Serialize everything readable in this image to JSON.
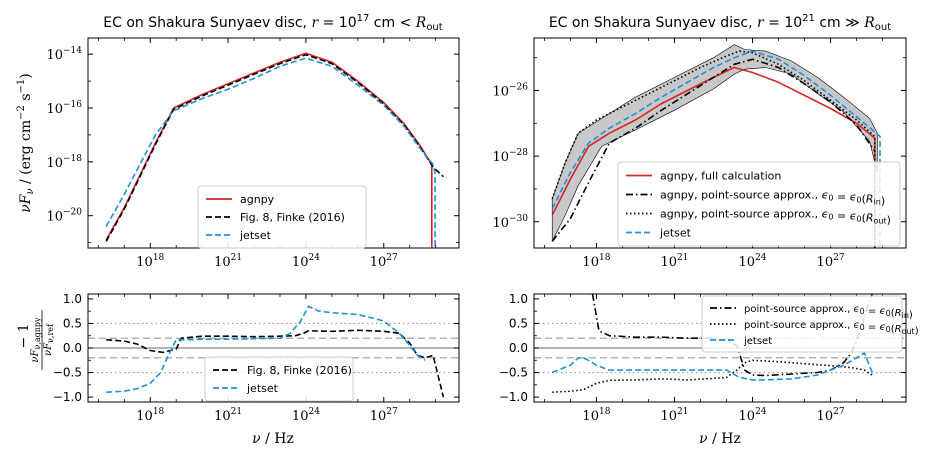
{
  "chart_data": [
    {
      "id": "top-left",
      "type": "line",
      "title": "EC on Shakura Sunyaev disc, r = 10^17 cm < R_out",
      "ylabel": "νF_ν / (erg cm^-2 s^-1)",
      "xlabel": "",
      "xscale": "log",
      "yscale": "log",
      "xlim_log10": [
        15.6,
        29.9
      ],
      "ylim_log10": [
        -21.2,
        -13.4
      ],
      "xticks": [
        {
          "pos": 18,
          "label": "10^18"
        },
        {
          "pos": 21,
          "label": "10^21"
        },
        {
          "pos": 24,
          "label": "10^24"
        },
        {
          "pos": 27,
          "label": "10^27"
        }
      ],
      "yticks": [
        {
          "pos": -14,
          "label": "10^-14"
        },
        {
          "pos": -16,
          "label": "10^-16"
        },
        {
          "pos": -18,
          "label": "10^-18"
        },
        {
          "pos": -20,
          "label": "10^-20"
        }
      ],
      "legend_position": "lower-center",
      "legend": [
        "agnpy",
        "Fig. 8, Finke (2016)",
        "jetset"
      ],
      "series": [
        {
          "name": "agnpy",
          "color": "#d62728",
          "dash": "solid",
          "x": [
            16.3,
            17.0,
            17.6,
            18.2,
            18.9,
            20.0,
            21.0,
            22.0,
            23.0,
            24.0,
            25.0,
            26.0,
            27.0,
            27.8,
            28.4,
            28.85,
            28.85
          ],
          "y": [
            -20.9,
            -19.7,
            -18.5,
            -17.3,
            -16.0,
            -15.5,
            -15.1,
            -14.7,
            -14.3,
            -13.97,
            -14.3,
            -15.0,
            -15.8,
            -16.6,
            -17.4,
            -18.1,
            -21.2
          ]
        },
        {
          "name": "Fig. 8, Finke (2016)",
          "color": "#000000",
          "dash": "dashed",
          "x": [
            16.3,
            17.0,
            17.6,
            18.2,
            18.9,
            20.0,
            21.0,
            22.0,
            23.0,
            24.0,
            25.0,
            26.0,
            27.0,
            27.8,
            28.4,
            28.9,
            29.3
          ],
          "y": [
            -20.95,
            -19.75,
            -18.55,
            -17.35,
            -16.05,
            -15.55,
            -15.15,
            -14.75,
            -14.35,
            -14.02,
            -14.35,
            -15.05,
            -15.85,
            -16.65,
            -17.45,
            -18.2,
            -18.55
          ]
        },
        {
          "name": "jetset",
          "color": "#1f8fe0",
          "dash": "dashed",
          "x": [
            16.3,
            17.0,
            17.6,
            18.2,
            18.9,
            20.0,
            21.0,
            22.0,
            23.0,
            24.0,
            25.0,
            26.0,
            27.0,
            27.8,
            28.4,
            28.9,
            28.98,
            28.98
          ],
          "y": [
            -20.4,
            -19.2,
            -18.1,
            -17.0,
            -16.1,
            -15.65,
            -15.3,
            -14.9,
            -14.45,
            -14.15,
            -14.45,
            -15.15,
            -15.9,
            -16.7,
            -17.5,
            -18.1,
            -18.4,
            -21.2
          ]
        }
      ]
    },
    {
      "id": "top-right",
      "type": "line",
      "title": "EC on Shakura Sunyaev disc, r = 10^21 cm ≫ R_out",
      "ylabel": "",
      "xlabel": "",
      "xscale": "log",
      "yscale": "log",
      "xlim_log10": [
        15.6,
        29.9
      ],
      "ylim_log10": [
        -30.8,
        -24.4
      ],
      "xticks": [
        {
          "pos": 18,
          "label": "10^18"
        },
        {
          "pos": 21,
          "label": "10^21"
        },
        {
          "pos": 24,
          "label": "10^24"
        },
        {
          "pos": 27,
          "label": "10^27"
        }
      ],
      "yticks": [
        {
          "pos": -26,
          "label": "10^-26"
        },
        {
          "pos": -28,
          "label": "10^-28"
        },
        {
          "pos": -30,
          "label": "10^-30"
        }
      ],
      "legend_position": "lower-right",
      "legend": [
        "agnpy, full calculation",
        "agnpy, point-source approx., ε0 = ε0(R_in)",
        "agnpy, point-source approx., ε0 = ε0(R_out)",
        "jetset"
      ],
      "band": {
        "color": "#c8c8c8",
        "x": [
          16.3,
          16.8,
          17.3,
          18.2,
          19.5,
          21.0,
          22.5,
          23.3,
          23.7,
          24.5,
          25.5,
          26.5,
          27.5,
          28.5,
          28.8
        ],
        "upper": [
          -29.3,
          -28.2,
          -27.3,
          -26.85,
          -26.2,
          -25.6,
          -25.0,
          -24.6,
          -24.75,
          -24.8,
          -25.1,
          -25.6,
          -26.2,
          -26.85,
          -27.3
        ],
        "lower": [
          -30.6,
          -29.8,
          -28.9,
          -27.7,
          -27.2,
          -26.6,
          -25.95,
          -25.5,
          -25.35,
          -25.3,
          -25.5,
          -26.1,
          -26.65,
          -27.55,
          -28.5
        ]
      },
      "series": [
        {
          "name": "agnpy, full calculation",
          "color": "#d62728",
          "dash": "solid",
          "x": [
            16.3,
            17.0,
            17.7,
            18.5,
            19.5,
            20.5,
            21.5,
            22.5,
            23.3,
            24.0,
            25.0,
            26.0,
            27.0,
            28.0,
            28.7,
            28.7
          ],
          "y": [
            -29.8,
            -28.7,
            -27.7,
            -27.3,
            -26.9,
            -26.4,
            -26.0,
            -25.6,
            -25.3,
            -25.45,
            -25.75,
            -26.15,
            -26.55,
            -27.0,
            -27.45,
            -30.8
          ]
        },
        {
          "name": "agnpy, point-source approx., ε0 = ε0(R_in)",
          "color": "#000000",
          "dash": "dashdot",
          "x": [
            16.3,
            17.0,
            17.7,
            18.5,
            19.5,
            20.5,
            21.5,
            22.5,
            23.3,
            24.0,
            25.0,
            26.0,
            27.0,
            28.0,
            28.7
          ],
          "y": [
            -30.6,
            -29.9,
            -28.8,
            -27.6,
            -27.15,
            -26.6,
            -26.1,
            -25.6,
            -25.2,
            -25.05,
            -25.3,
            -25.8,
            -26.35,
            -27.05,
            -27.85
          ]
        },
        {
          "name": "agnpy, point-source approx., ε0 = ε0(R_out)",
          "color": "#000000",
          "dash": "dotted",
          "x": [
            16.3,
            16.8,
            17.3,
            18.0,
            19.0,
            20.0,
            21.0,
            22.0,
            23.0,
            23.5,
            24.0,
            25.0,
            26.0,
            27.0,
            28.0,
            28.7,
            28.7
          ],
          "y": [
            -29.3,
            -28.2,
            -27.3,
            -26.9,
            -26.5,
            -26.1,
            -25.7,
            -25.3,
            -24.95,
            -24.8,
            -24.85,
            -25.2,
            -25.7,
            -26.3,
            -26.9,
            -27.4,
            -30.8
          ]
        },
        {
          "name": "jetset",
          "color": "#1f8fe0",
          "dash": "dashed",
          "x": [
            16.3,
            17.0,
            17.7,
            18.5,
            19.5,
            20.5,
            21.5,
            22.5,
            23.3,
            24.0,
            25.0,
            26.0,
            27.0,
            28.0,
            28.9,
            28.9
          ],
          "y": [
            -29.6,
            -28.5,
            -27.6,
            -27.15,
            -26.7,
            -26.2,
            -25.75,
            -25.3,
            -25.0,
            -24.8,
            -25.05,
            -25.55,
            -26.15,
            -26.8,
            -27.4,
            -30.8
          ]
        }
      ]
    },
    {
      "id": "bottom-left",
      "type": "line",
      "title": "",
      "ylabel": "νF_ν,agnpy / νF_ν,ref − 1",
      "xlabel": "ν / Hz",
      "xscale": "log",
      "yscale": "linear",
      "xlim_log10": [
        15.6,
        29.9
      ],
      "ylim": [
        -1.1,
        1.1
      ],
      "xticks": [
        {
          "pos": 18,
          "label": "10^18"
        },
        {
          "pos": 21,
          "label": "10^21"
        },
        {
          "pos": 24,
          "label": "10^24"
        },
        {
          "pos": 27,
          "label": "10^27"
        }
      ],
      "yticks": [
        {
          "pos": 1.0,
          "label": "1.0"
        },
        {
          "pos": 0.5,
          "label": "0.5"
        },
        {
          "pos": 0.0,
          "label": "0.0"
        },
        {
          "pos": -0.5,
          "label": "−0.5"
        },
        {
          "pos": -1.0,
          "label": "−1.0"
        }
      ],
      "reference_lines": [
        {
          "y": 0.0,
          "color": "#888888",
          "dash": "solid"
        },
        {
          "y": 0.2,
          "color": "#999999",
          "dash": "dashed"
        },
        {
          "y": -0.2,
          "color": "#999999",
          "dash": "dashed"
        },
        {
          "y": 0.5,
          "color": "#999999",
          "dash": "dotted"
        },
        {
          "y": -0.5,
          "color": "#999999",
          "dash": "dotted"
        }
      ],
      "legend_position": "lower-center",
      "legend": [
        "Fig. 8, Finke (2016)",
        "jetset"
      ],
      "series": [
        {
          "name": "Fig. 8, Finke (2016)",
          "color": "#000000",
          "dash": "dashed",
          "x": [
            16.3,
            17.0,
            17.5,
            18.0,
            18.5,
            19.0,
            19.2,
            20.0,
            21.0,
            22.0,
            23.0,
            23.6,
            23.9,
            24.1,
            25.0,
            26.0,
            27.0,
            27.6,
            28.0,
            28.3,
            28.6,
            28.9,
            29.3
          ],
          "y": [
            0.17,
            0.14,
            0.08,
            -0.05,
            -0.09,
            -0.02,
            0.2,
            0.24,
            0.24,
            0.23,
            0.24,
            0.25,
            0.3,
            0.35,
            0.34,
            0.36,
            0.34,
            0.3,
            0.1,
            -0.15,
            -0.2,
            -0.15,
            -1.0
          ]
        },
        {
          "name": "jetset",
          "color": "#1f8fe0",
          "dash": "dashed",
          "x": [
            16.3,
            17.0,
            17.5,
            18.0,
            18.4,
            18.7,
            19.0,
            19.5,
            20.0,
            21.0,
            22.0,
            23.0,
            23.4,
            23.8,
            24.1,
            24.5,
            25.0,
            26.0,
            26.5,
            27.0,
            27.6,
            28.0,
            28.3,
            28.6
          ],
          "y": [
            -0.9,
            -0.88,
            -0.83,
            -0.72,
            -0.5,
            -0.15,
            0.17,
            0.17,
            0.18,
            0.18,
            0.19,
            0.2,
            0.3,
            0.55,
            0.85,
            0.75,
            0.72,
            0.68,
            0.62,
            0.55,
            0.3,
            0.05,
            -0.15,
            -0.25
          ]
        }
      ]
    },
    {
      "id": "bottom-right",
      "type": "line",
      "title": "",
      "ylabel": "",
      "xlabel": "ν / Hz",
      "xscale": "log",
      "yscale": "linear",
      "xlim_log10": [
        15.6,
        29.9
      ],
      "ylim": [
        -1.1,
        1.1
      ],
      "xticks": [
        {
          "pos": 18,
          "label": "10^18"
        },
        {
          "pos": 21,
          "label": "10^21"
        },
        {
          "pos": 24,
          "label": "10^24"
        },
        {
          "pos": 27,
          "label": "10^27"
        }
      ],
      "yticks": [
        {
          "pos": 1.0,
          "label": "1.0"
        },
        {
          "pos": 0.5,
          "label": "0.5"
        },
        {
          "pos": 0.0,
          "label": "0.0"
        },
        {
          "pos": -0.5,
          "label": "−0.5"
        },
        {
          "pos": -1.0,
          "label": "−1.0"
        }
      ],
      "reference_lines": [
        {
          "y": 0.0,
          "color": "#888888",
          "dash": "solid"
        },
        {
          "y": 0.2,
          "color": "#999999",
          "dash": "dashed"
        },
        {
          "y": -0.2,
          "color": "#999999",
          "dash": "dashed"
        },
        {
          "y": 0.5,
          "color": "#999999",
          "dash": "dotted"
        },
        {
          "y": -0.5,
          "color": "#999999",
          "dash": "dotted"
        }
      ],
      "legend_position": "upper-right",
      "legend": [
        "point-source approx., ε0 = ε0(R_in)",
        "point-source approx., ε0 = ε0(R_out)",
        "jetset"
      ],
      "series": [
        {
          "name": "point-source approx., ε0 = ε0(R_in)",
          "color": "#000000",
          "dash": "dashdot",
          "x": [
            17.85,
            17.95,
            18.1,
            18.5,
            19.5,
            20.5,
            21.5,
            22.5,
            23.0,
            23.4,
            23.7,
            24.0,
            24.5,
            25.5,
            26.5,
            27.0,
            27.5,
            27.8,
            28.1,
            28.4,
            28.6
          ],
          "y": [
            1.1,
            0.8,
            0.35,
            0.25,
            0.22,
            0.22,
            0.2,
            0.2,
            0.15,
            0.05,
            -0.45,
            -0.55,
            -0.56,
            -0.53,
            -0.5,
            -0.45,
            -0.3,
            -0.1,
            0.3,
            0.8,
            1.1
          ]
        },
        {
          "name": "point-source approx., ε0 = ε0(R_out)",
          "color": "#000000",
          "dash": "dotted",
          "x": [
            16.3,
            17.0,
            17.5,
            18.0,
            18.5,
            19.5,
            20.5,
            21.5,
            22.5,
            23.0,
            23.4,
            23.7,
            24.0,
            25.0,
            26.0,
            27.0,
            27.8,
            28.3,
            28.6
          ],
          "y": [
            -0.9,
            -0.88,
            -0.85,
            -0.72,
            -0.66,
            -0.65,
            -0.63,
            -0.65,
            -0.62,
            -0.6,
            -0.45,
            -0.3,
            -0.25,
            -0.28,
            -0.32,
            -0.36,
            -0.4,
            -0.45,
            -0.55
          ]
        },
        {
          "name": "jetset",
          "color": "#1f8fe0",
          "dash": "dashed",
          "x": [
            16.3,
            17.0,
            17.3,
            17.6,
            18.0,
            18.5,
            19.5,
            20.5,
            21.5,
            22.5,
            23.0,
            23.5,
            24.0,
            24.5,
            25.5,
            26.5,
            27.0,
            27.5,
            28.0,
            28.3,
            28.6
          ],
          "y": [
            -0.5,
            -0.35,
            -0.2,
            -0.22,
            -0.35,
            -0.45,
            -0.45,
            -0.45,
            -0.45,
            -0.45,
            -0.45,
            -0.6,
            -0.65,
            -0.65,
            -0.63,
            -0.55,
            -0.45,
            -0.35,
            -0.2,
            -0.1,
            -0.5
          ]
        }
      ]
    }
  ]
}
